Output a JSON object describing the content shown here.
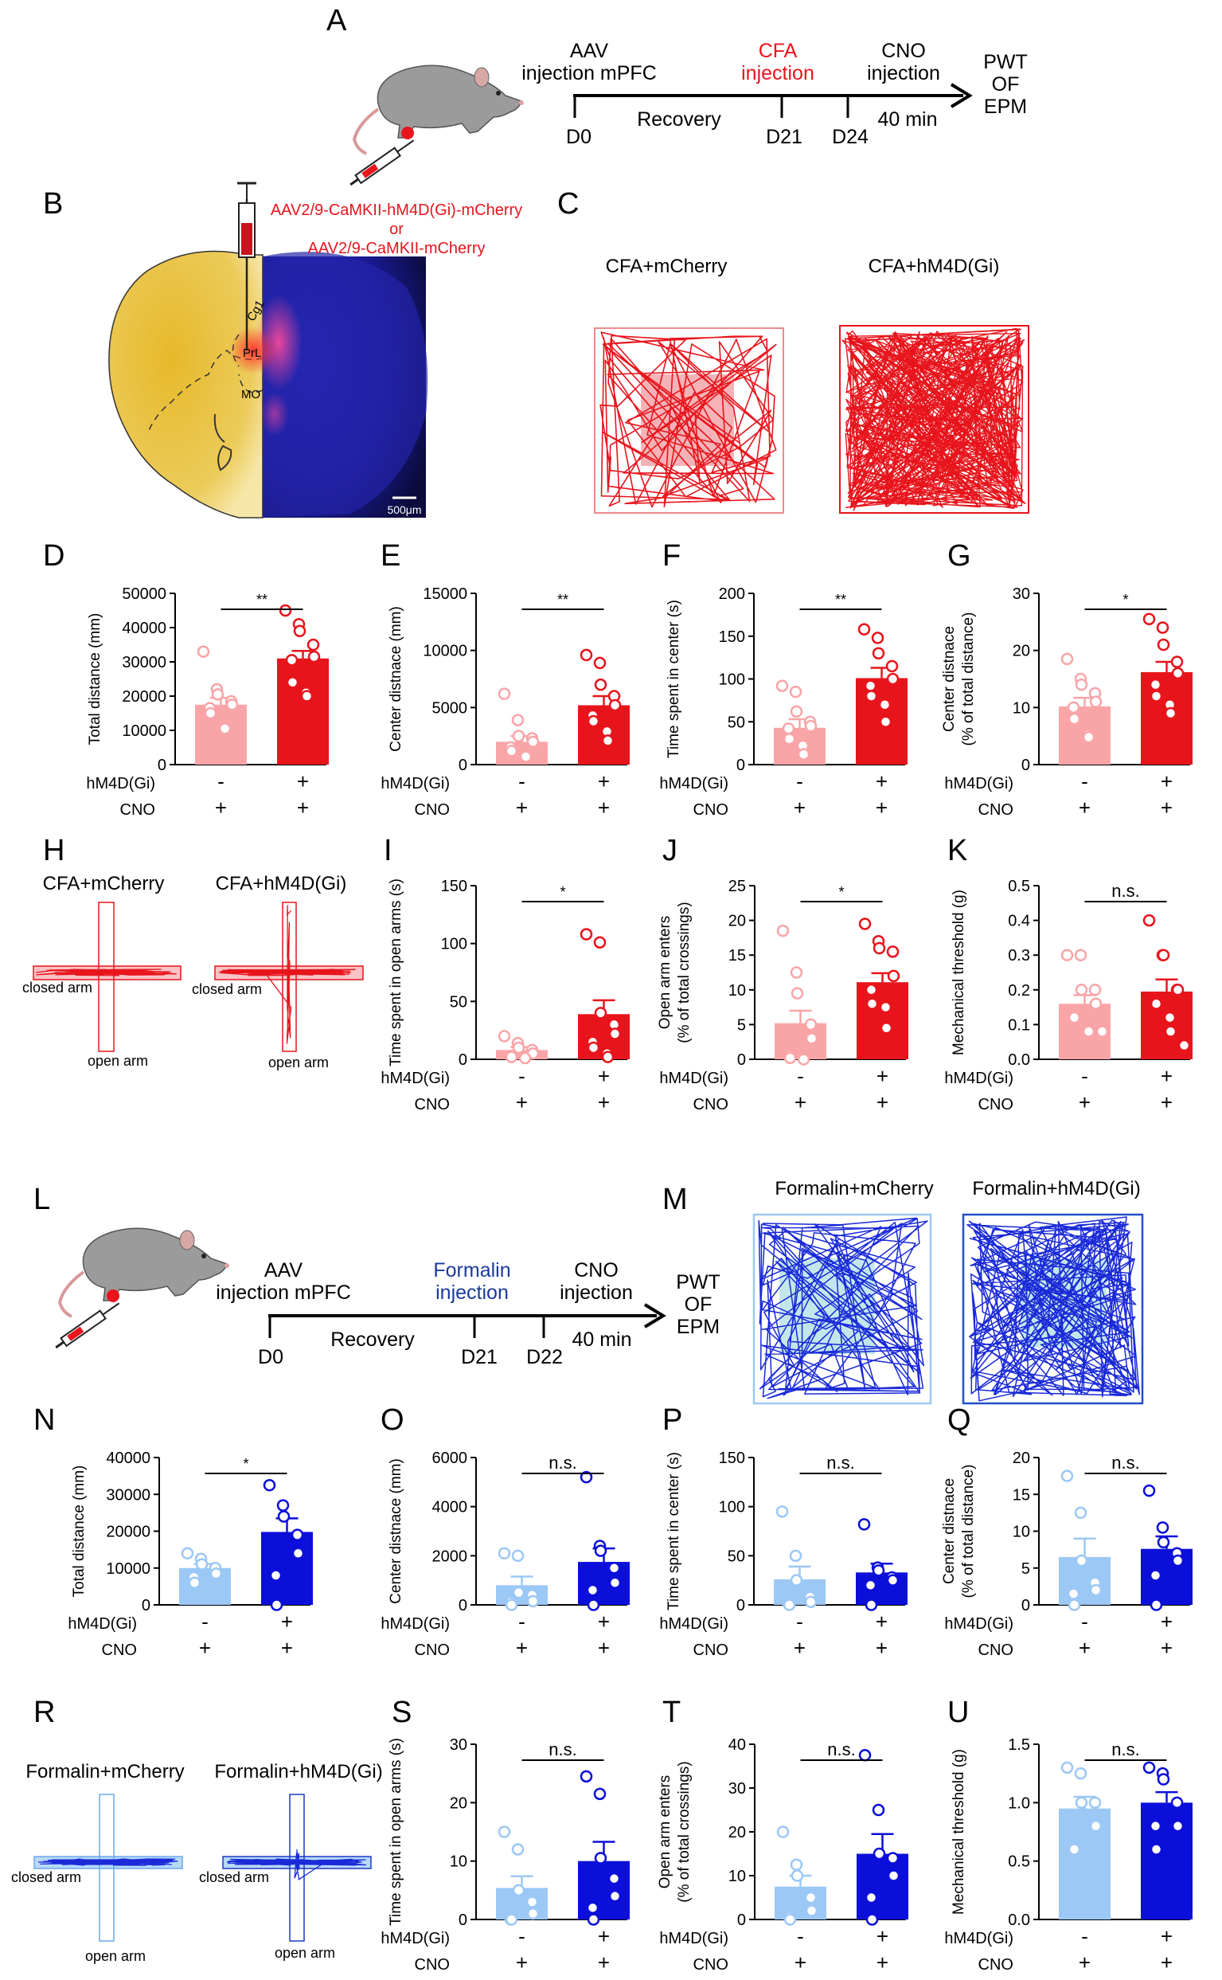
{
  "panels": {
    "A": "A",
    "B": "B",
    "C": "C",
    "D": "D",
    "E": "E",
    "F": "F",
    "G": "G",
    "H": "H",
    "I": "I",
    "J": "J",
    "K": "K",
    "L": "L",
    "M": "M",
    "N": "N",
    "O": "O",
    "P": "P",
    "Q": "Q",
    "R": "R",
    "S": "S",
    "T": "T",
    "U": "U"
  },
  "timelineA": {
    "aav": [
      "AAV",
      "injection mPFC"
    ],
    "cfa": [
      "CFA",
      "injection"
    ],
    "cno": [
      "CNO",
      "injection"
    ],
    "out": [
      "PWT",
      "OF",
      "EPM"
    ],
    "recovery": "Recovery",
    "d0": "D0",
    "d21": "D21",
    "d24": "D24",
    "min": "40 min",
    "accent_color": "#e8141c"
  },
  "panelB": {
    "virus1": "AAV2/9-CaMKII-hM4D(Gi)-mCherry",
    "or": "or",
    "virus2": "AAV2/9-CaMKII-mCherry",
    "cg1": "Cg1",
    "prl": "PrL",
    "mo": "MO",
    "scale": "500μm"
  },
  "panelC": {
    "left": "CFA+mCherry",
    "right": "CFA+hM4D(Gi)"
  },
  "panelH": {
    "left": "CFA+mCherry",
    "right": "CFA+hM4D(Gi)",
    "closed": "closed arm",
    "open": "open arm"
  },
  "timelineL": {
    "aav": [
      "AAV",
      "injection mPFC"
    ],
    "formalin": [
      "Formalin",
      "injection"
    ],
    "cno": [
      "CNO",
      "injection"
    ],
    "out": [
      "PWT",
      "OF",
      "EPM"
    ],
    "recovery": "Recovery",
    "d0": "D0",
    "d21": "D21",
    "d22": "D22",
    "min": "40 min",
    "accent_color": "#1a3a9c"
  },
  "panelM": {
    "left": "Formalin+mCherry",
    "right": "Formalin+hM4D(Gi)"
  },
  "panelR": {
    "left": "Formalin+mCherry",
    "right": "Formalin+hM4D(Gi)",
    "closed": "closed arm",
    "open": "open arm"
  },
  "group_labels": {
    "row1": "hM4D(Gi)",
    "row2": "CNO",
    "minus": "-",
    "plus": "+"
  },
  "colors": {
    "cfa_control": "#f9a5a8",
    "cfa_treated": "#e8141c",
    "formalin_control": "#9cc8f5",
    "formalin_treated": "#0b0fd9"
  },
  "chart_data": [
    {
      "panel": "D",
      "type": "bar",
      "ylabel": "Total distance (mm)",
      "ylim": [
        0,
        50000
      ],
      "yticks": [
        "0",
        "10000",
        "20000",
        "30000",
        "40000",
        "50000"
      ],
      "sig": "**",
      "bars": [
        {
          "mean": 17500,
          "sem": 2000
        },
        {
          "mean": 31000,
          "sem": 2200
        }
      ],
      "points": [
        [
          33000,
          22000,
          20500,
          18500,
          17500,
          16500,
          15000,
          11000,
          10500
        ],
        [
          45000,
          41000,
          39000,
          35000,
          31500,
          30500,
          24000,
          21000,
          20000
        ]
      ]
    },
    {
      "panel": "E",
      "type": "bar",
      "ylabel": "Center distnace (mm)",
      "ylim": [
        0,
        15000
      ],
      "yticks": [
        "0",
        "5000",
        "10000",
        "15000"
      ],
      "sig": "**",
      "bars": [
        {
          "mean": 2000,
          "sem": 500
        },
        {
          "mean": 5200,
          "sem": 800
        }
      ],
      "points": [
        [
          6200,
          3900,
          2500,
          2300,
          2000,
          1500,
          1200,
          800,
          700
        ],
        [
          9600,
          8900,
          7000,
          6000,
          5200,
          4300,
          3800,
          2900,
          2100
        ]
      ]
    },
    {
      "panel": "F",
      "type": "bar",
      "ylabel": "Time spent in center (s)",
      "ylim": [
        0,
        200
      ],
      "yticks": [
        "0",
        "50",
        "100",
        "150",
        "200"
      ],
      "sig": "**",
      "bars": [
        {
          "mean": 43,
          "sem": 10
        },
        {
          "mean": 101,
          "sem": 12
        }
      ],
      "points": [
        [
          92,
          85,
          62,
          50,
          45,
          42,
          30,
          22,
          12
        ],
        [
          158,
          148,
          130,
          115,
          100,
          92,
          80,
          70,
          50
        ]
      ]
    },
    {
      "panel": "G",
      "type": "bar",
      "ylabel": "Center distnace\n(% of total distance)",
      "ylim": [
        0,
        30
      ],
      "yticks": [
        "0",
        "10",
        "20",
        "30"
      ],
      "sig": "*",
      "bars": [
        {
          "mean": 10.2,
          "sem": 1.5
        },
        {
          "mean": 16.2,
          "sem": 1.8
        }
      ],
      "points": [
        [
          18.5,
          15,
          14,
          12.5,
          11,
          10,
          8,
          5.2,
          4.8
        ],
        [
          25.5,
          24,
          21,
          18,
          16,
          14,
          12,
          10.5,
          9
        ]
      ]
    },
    {
      "panel": "I",
      "type": "bar",
      "ylabel": "Time spent in open arms (s)",
      "ylim": [
        0,
        150
      ],
      "yticks": [
        "0",
        "50",
        "100",
        "150"
      ],
      "sig": "*",
      "bars": [
        {
          "mean": 8,
          "sem": 2.5
        },
        {
          "mean": 39,
          "sem": 12
        }
      ],
      "points": [
        [
          20,
          14,
          10,
          8,
          5,
          3,
          2,
          1
        ],
        [
          108,
          101,
          40,
          30,
          22,
          15,
          10,
          5,
          2
        ]
      ]
    },
    {
      "panel": "J",
      "type": "bar",
      "ylabel": "Open arm enters\n(% of total crossings)",
      "ylim": [
        0,
        25
      ],
      "yticks": [
        "0",
        "5",
        "10",
        "15",
        "20",
        "25"
      ],
      "sig": "*",
      "bars": [
        {
          "mean": 5.2,
          "sem": 1.8
        },
        {
          "mean": 11.1,
          "sem": 1.3
        }
      ],
      "points": [
        [
          18.5,
          12.5,
          9.5,
          5,
          3,
          0.5,
          0.2,
          0
        ],
        [
          19.5,
          17,
          16,
          15.5,
          12,
          10,
          8,
          7.5,
          4.5
        ]
      ]
    },
    {
      "panel": "K",
      "type": "bar",
      "ylabel": "Mechanical threshold (g)",
      "ylim": [
        0,
        0.5
      ],
      "yticks": [
        "0.0",
        "0.1",
        "0.2",
        "0.3",
        "0.4",
        "0.5"
      ],
      "sig": "n.s.",
      "bars": [
        {
          "mean": 0.16,
          "sem": 0.025
        },
        {
          "mean": 0.195,
          "sem": 0.035
        }
      ],
      "points": [
        [
          0.3,
          0.3,
          0.2,
          0.2,
          0.16,
          0.12,
          0.12,
          0.08,
          0.08,
          0.08
        ],
        [
          0.4,
          0.3,
          0.3,
          0.2,
          0.2,
          0.16,
          0.16,
          0.12,
          0.08,
          0.04
        ]
      ]
    },
    {
      "panel": "N",
      "type": "bar",
      "ylabel": "Total distance (mm)",
      "ylim": [
        0,
        40000
      ],
      "yticks": [
        "0",
        "10000",
        "20000",
        "30000",
        "40000"
      ],
      "sig": "*",
      "bars": [
        {
          "mean": 10000,
          "sem": 1100
        },
        {
          "mean": 19800,
          "sem": 3700
        }
      ],
      "points": [
        [
          14000,
          12500,
          11000,
          10000,
          8500,
          7500,
          6000
        ],
        [
          32500,
          27000,
          24000,
          19000,
          14000,
          8000,
          0
        ]
      ]
    },
    {
      "panel": "O",
      "type": "bar",
      "ylabel": "Center distnace (mm)",
      "ylim": [
        0,
        6000
      ],
      "yticks": [
        "0",
        "2000",
        "4000",
        "6000"
      ],
      "sig": "n.s.",
      "bars": [
        {
          "mean": 800,
          "sem": 350
        },
        {
          "mean": 1750,
          "sem": 550
        }
      ],
      "points": [
        [
          2100,
          2000,
          500,
          400,
          150,
          100,
          0
        ],
        [
          5200,
          2400,
          2200,
          1500,
          900,
          600,
          0
        ]
      ]
    },
    {
      "panel": "P",
      "type": "bar",
      "ylabel": "Time spent in center (s)",
      "ylim": [
        0,
        150
      ],
      "yticks": [
        "0",
        "50",
        "100",
        "150"
      ],
      "sig": "n.s.",
      "bars": [
        {
          "mean": 26,
          "sem": 13
        },
        {
          "mean": 33,
          "sem": 9
        }
      ],
      "points": [
        [
          95,
          50,
          25,
          8,
          3,
          1,
          0
        ],
        [
          82,
          38,
          35,
          28,
          25,
          20,
          0
        ]
      ]
    },
    {
      "panel": "Q",
      "type": "bar",
      "ylabel": "Center distnace\n(% of total distance)",
      "ylim": [
        0,
        20
      ],
      "yticks": [
        "0",
        "5",
        "10",
        "15",
        "20"
      ],
      "sig": "n.s.",
      "bars": [
        {
          "mean": 6.5,
          "sem": 2.5
        },
        {
          "mean": 7.6,
          "sem": 1.7
        }
      ],
      "points": [
        [
          17.5,
          12.5,
          6,
          3,
          2,
          1.5,
          0
        ],
        [
          15.5,
          10.5,
          8.5,
          7,
          6,
          4,
          0
        ]
      ]
    },
    {
      "panel": "S",
      "type": "bar",
      "ylabel": "Time spent in open arms (s)",
      "ylim": [
        0,
        30
      ],
      "yticks": [
        "0",
        "10",
        "20",
        "30"
      ],
      "sig": "n.s.",
      "bars": [
        {
          "mean": 5.4,
          "sem": 2
        },
        {
          "mean": 10,
          "sem": 3.3
        }
      ],
      "points": [
        [
          15,
          12,
          5,
          3,
          1,
          0,
          0
        ],
        [
          24.5,
          21.5,
          10.5,
          7,
          4,
          2,
          0
        ]
      ]
    },
    {
      "panel": "T",
      "type": "bar",
      "ylabel": "Open arm enters\n(% of total crossings)",
      "ylim": [
        0,
        40
      ],
      "yticks": [
        "0",
        "10",
        "20",
        "30",
        "40"
      ],
      "sig": "n.s.",
      "bars": [
        {
          "mean": 7.5,
          "sem": 2.5
        },
        {
          "mean": 15,
          "sem": 4.5
        }
      ],
      "points": [
        [
          20,
          12.5,
          10,
          5,
          2,
          0.5,
          0
        ],
        [
          37.5,
          25,
          15,
          14,
          10,
          5,
          0
        ]
      ]
    },
    {
      "panel": "U",
      "type": "bar",
      "ylabel": "Mechanical threshold (g)",
      "ylim": [
        0,
        1.5
      ],
      "yticks": [
        "0.0",
        "0.5",
        "1.0",
        "1.5"
      ],
      "sig": "n.s.",
      "bars": [
        {
          "mean": 0.95,
          "sem": 0.1
        },
        {
          "mean": 1.0,
          "sem": 0.09
        }
      ],
      "points": [
        [
          1.3,
          1.25,
          1.0,
          1.0,
          0.8,
          0.6,
          0.6
        ],
        [
          1.3,
          1.25,
          1.2,
          1.0,
          0.8,
          0.8,
          0.6
        ]
      ]
    }
  ]
}
